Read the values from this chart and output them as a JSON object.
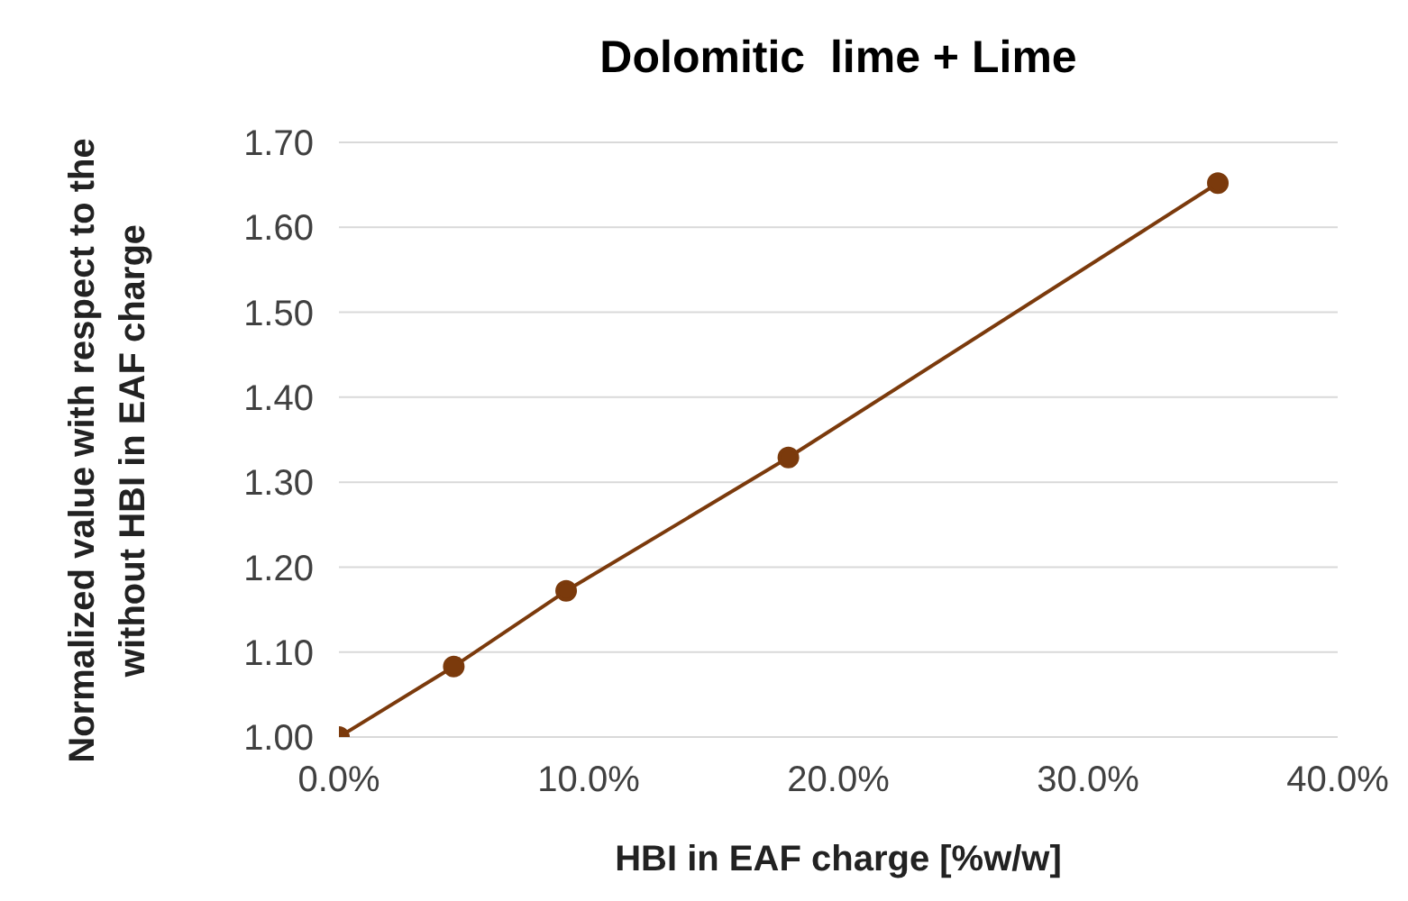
{
  "chart_data": {
    "type": "line",
    "title": "Dolomitic  lime + Lime",
    "xlabel": "HBI in EAF charge [%w/w]",
    "ylabel": "Normalized value with respect to the without HBI in EAF charge",
    "x": [
      0,
      4.6,
      9.1,
      18,
      35.2
    ],
    "series": [
      {
        "color": "#7b3a0c",
        "values": [
          1.0,
          1.083,
          1.172,
          1.329,
          1.652
        ]
      }
    ],
    "xlim": [
      0,
      40
    ],
    "xticks": [
      {
        "value": 0,
        "label": "0.0%"
      },
      {
        "value": 10,
        "label": "10.0%"
      },
      {
        "value": 20,
        "label": "20.0%"
      },
      {
        "value": 30,
        "label": "30.0%"
      },
      {
        "value": 40,
        "label": "40.0%"
      }
    ],
    "ylim": [
      1.0,
      1.7
    ],
    "yticks": [
      {
        "value": 1.0,
        "label": "1.00"
      },
      {
        "value": 1.1,
        "label": "1.10"
      },
      {
        "value": 1.2,
        "label": "1.20"
      },
      {
        "value": 1.3,
        "label": "1.30"
      },
      {
        "value": 1.4,
        "label": "1.40"
      },
      {
        "value": 1.5,
        "label": "1.50"
      },
      {
        "value": 1.6,
        "label": "1.60"
      },
      {
        "value": 1.7,
        "label": "1.70"
      }
    ],
    "grid": "y",
    "marker": "circle",
    "line_style": "solid"
  }
}
